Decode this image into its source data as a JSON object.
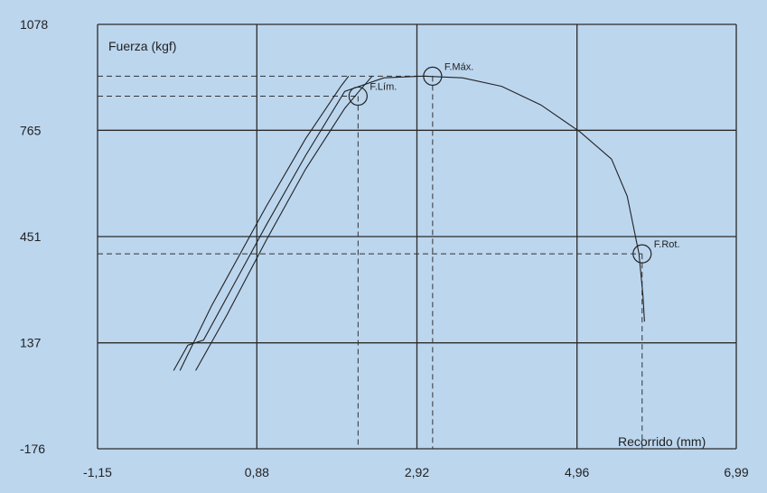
{
  "chart_data": {
    "type": "line",
    "title": "",
    "xlabel": "Recorrido (mm)",
    "ylabel": "Fuerza (kgf)",
    "xlim": [
      -1.15,
      6.99
    ],
    "ylim": [
      -176,
      1078
    ],
    "x_ticks": [
      "-1,15",
      "0,88",
      "2,92",
      "4,96",
      "6,99"
    ],
    "y_ticks": [
      "1078",
      "765",
      "451",
      "137",
      "-176"
    ],
    "x_tick_values": [
      -1.15,
      0.88,
      2.92,
      4.96,
      6.99
    ],
    "y_tick_values": [
      1078,
      765,
      451,
      137,
      -176
    ],
    "grid": true,
    "colors": {
      "background": "#bcd6ee",
      "plot_area": "#bcd6ee",
      "lines": "#222222"
    },
    "series": [
      {
        "points": [
          [
            -0.18,
            55
          ],
          [
            0.0,
            130
          ],
          [
            0.2,
            145
          ],
          [
            0.6,
            315
          ],
          [
            1.0,
            485
          ],
          [
            1.5,
            690
          ],
          [
            2.0,
            880
          ],
          [
            2.5,
            920
          ],
          [
            3.0,
            925
          ],
          [
            3.5,
            920
          ],
          [
            4.0,
            895
          ],
          [
            4.5,
            840
          ],
          [
            5.0,
            760
          ],
          [
            5.4,
            680
          ],
          [
            5.6,
            570
          ],
          [
            5.75,
            400
          ],
          [
            5.8,
            280
          ],
          [
            5.82,
            200
          ]
        ]
      },
      {
        "points": [
          [
            -0.1,
            55
          ],
          [
            0.3,
            245
          ],
          [
            1.0,
            540
          ],
          [
            1.5,
            740
          ],
          [
            1.95,
            895
          ],
          [
            2.05,
            925
          ]
        ]
      },
      {
        "points": [
          [
            0.1,
            55
          ],
          [
            0.5,
            220
          ],
          [
            1.0,
            440
          ],
          [
            1.5,
            650
          ],
          [
            2.0,
            830
          ],
          [
            2.2,
            885
          ],
          [
            2.35,
            925
          ]
        ]
      }
    ],
    "annotations": [
      {
        "label": "F.Lím.",
        "x": 2.17,
        "y": 866
      },
      {
        "label": "F.Máx.",
        "x": 3.12,
        "y": 925
      },
      {
        "label": "F.Rot.",
        "x": 5.79,
        "y": 400
      }
    ]
  }
}
